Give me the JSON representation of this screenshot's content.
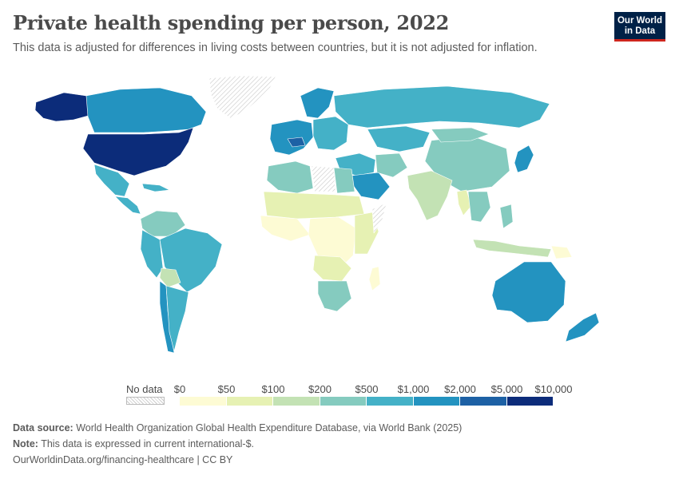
{
  "header": {
    "title": "Private health spending per person, 2022",
    "subtitle": "This data is adjusted for differences in living costs between countries, but it is not adjusted for inflation.",
    "logo_line1": "Our World",
    "logo_line2": "in Data"
  },
  "legend": {
    "no_data_label": "No data",
    "ticks": [
      "$0",
      "$50",
      "$100",
      "$200",
      "$500",
      "$1,000",
      "$2,000",
      "$5,000",
      "$10,000"
    ],
    "colors": [
      "#fdfbd4",
      "#e6f1b3",
      "#c3e2b4",
      "#85cbbf",
      "#44b1c7",
      "#2393c0",
      "#1d61a5",
      "#0c2c7a"
    ]
  },
  "regions": [
    {
      "name": "United States",
      "bin": 7
    },
    {
      "name": "Alaska",
      "bin": 7
    },
    {
      "name": "Canada",
      "bin": 5
    },
    {
      "name": "Greenland",
      "bin": -1
    },
    {
      "name": "Mexico",
      "bin": 4
    },
    {
      "name": "Central America",
      "bin": 4
    },
    {
      "name": "Caribbean",
      "bin": 4
    },
    {
      "name": "Colombia & Venezuela",
      "bin": 3
    },
    {
      "name": "Brazil",
      "bin": 4
    },
    {
      "name": "Andean South America",
      "bin": 4
    },
    {
      "name": "Chile",
      "bin": 5
    },
    {
      "name": "Bolivia",
      "bin": 2
    },
    {
      "name": "Argentina",
      "bin": 4
    },
    {
      "name": "Western Europe",
      "bin": 5
    },
    {
      "name": "Switzerland",
      "bin": 6
    },
    {
      "name": "Scandinavia",
      "bin": 5
    },
    {
      "name": "Eastern Europe",
      "bin": 4
    },
    {
      "name": "Russia",
      "bin": 4
    },
    {
      "name": "Kazakhstan",
      "bin": 4
    },
    {
      "name": "Middle East",
      "bin": 4
    },
    {
      "name": "Iran",
      "bin": 3
    },
    {
      "name": "China",
      "bin": 3
    },
    {
      "name": "Mongolia",
      "bin": 3
    },
    {
      "name": "India",
      "bin": 2
    },
    {
      "name": "Southeast Asia",
      "bin": 3
    },
    {
      "name": "Japan",
      "bin": 5
    },
    {
      "name": "Indonesia",
      "bin": 2
    },
    {
      "name": "Philippines",
      "bin": 3
    },
    {
      "name": "Australia",
      "bin": 5
    },
    {
      "name": "New Zealand",
      "bin": 5
    },
    {
      "name": "North Africa",
      "bin": 3
    },
    {
      "name": "Egypt",
      "bin": 3
    },
    {
      "name": "Libya",
      "bin": -1
    },
    {
      "name": "West Africa",
      "bin": 0
    },
    {
      "name": "Sahel",
      "bin": 1
    },
    {
      "name": "Central Africa",
      "bin": 0
    },
    {
      "name": "East Africa",
      "bin": 1
    },
    {
      "name": "Somalia",
      "bin": -1
    },
    {
      "name": "Southern Africa",
      "bin": 3
    },
    {
      "name": "Angola & Zambia",
      "bin": 1
    },
    {
      "name": "Madagascar",
      "bin": 0
    },
    {
      "name": "Saudi Arabia",
      "bin": 5
    },
    {
      "name": "Myanmar",
      "bin": 1
    },
    {
      "name": "Papua New Guinea",
      "bin": 0
    }
  ],
  "footer": {
    "source_label": "Data source:",
    "source_text": "World Health Organization Global Health Expenditure Database, via World Bank (2025)",
    "note_label": "Note:",
    "note_text": "This data is expressed in current international-$.",
    "url_text": "OurWorldinData.org/financing-healthcare | CC BY"
  }
}
